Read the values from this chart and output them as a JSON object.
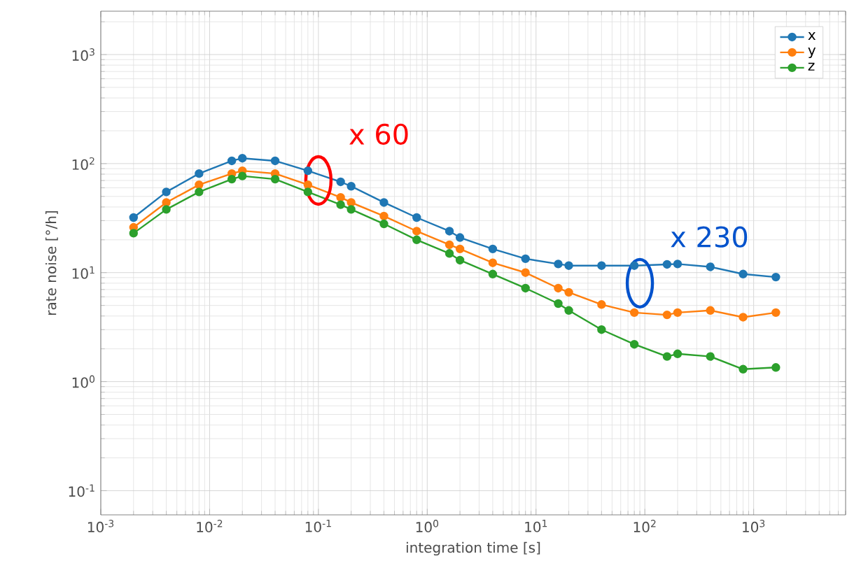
{
  "chart_data": {
    "type": "line",
    "xlabel": "integration time [s]",
    "ylabel": "rate noise [°/h]",
    "log": "xy",
    "grid": true,
    "legend": "top right",
    "marker": "circle",
    "line_style": "solid",
    "x": [
      0.002,
      0.004,
      0.008,
      0.016,
      0.02,
      0.04,
      0.08,
      0.16,
      0.2,
      0.4,
      0.8,
      1.6,
      2,
      4,
      8,
      16,
      20,
      40,
      80,
      160,
      200,
      400,
      800,
      1600
    ],
    "series": [
      {
        "name": "x",
        "color": "#1f77b4",
        "values": [
          32,
          55,
          81,
          106,
          112,
          106,
          86,
          68,
          62,
          44,
          32,
          24,
          21,
          16.5,
          13.4,
          12,
          11.6,
          11.6,
          11.6,
          11.9,
          12,
          11.3,
          9.7,
          9.1
        ]
      },
      {
        "name": "y",
        "color": "#ff7f0e",
        "values": [
          26,
          44,
          64,
          81,
          86,
          81,
          64,
          49,
          44,
          33,
          24,
          18,
          16.5,
          12.3,
          10,
          7.2,
          6.6,
          5.1,
          4.3,
          4.1,
          4.3,
          4.5,
          3.9,
          4.3
        ]
      },
      {
        "name": "z",
        "color": "#2ca02c",
        "values": [
          23,
          38,
          55,
          72,
          77,
          72,
          55,
          42,
          38,
          28,
          20,
          15,
          13,
          9.7,
          7.2,
          5.2,
          4.5,
          3.0,
          2.2,
          1.7,
          1.8,
          1.7,
          1.3,
          1.35
        ]
      }
    ],
    "xlim": [
      0.001,
      7000
    ],
    "ylim": [
      0.06,
      2500
    ],
    "xticks": [
      {
        "value": 0.001,
        "label": "10$^{-3}$"
      },
      {
        "value": 0.01,
        "label": "10$^{-2}$"
      },
      {
        "value": 0.1,
        "label": "10$^{-1}$"
      },
      {
        "value": 1,
        "label": "10$^{0}$"
      },
      {
        "value": 10,
        "label": "10$^{1}$"
      },
      {
        "value": 100,
        "label": "10$^{2}$"
      },
      {
        "value": 1000,
        "label": "10$^{3}$"
      }
    ],
    "yticks": [
      {
        "value": 0.1,
        "label": "10$^{-1}$"
      },
      {
        "value": 1,
        "label": "10$^{0}$"
      },
      {
        "value": 10,
        "label": "10$^{1}$"
      },
      {
        "value": 100,
        "label": "10$^{2}$"
      },
      {
        "value": 1000,
        "label": "10$^{3}$"
      }
    ],
    "annotations": [
      {
        "text": "x 60",
        "x": 0.1,
        "y": 70
      },
      {
        "text": "x 230",
        "x": 90,
        "y": 8
      }
    ]
  }
}
